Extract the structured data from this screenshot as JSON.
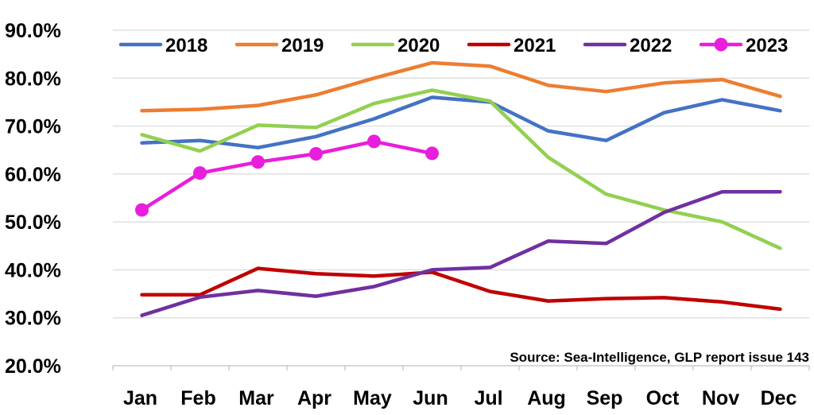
{
  "chart_data": {
    "type": "line",
    "categories": [
      "Jan",
      "Feb",
      "Mar",
      "Apr",
      "May",
      "Jun",
      "Jul",
      "Aug",
      "Sep",
      "Oct",
      "Nov",
      "Dec"
    ],
    "y_ticks": [
      "20.0%",
      "30.0%",
      "40.0%",
      "50.0%",
      "60.0%",
      "70.0%",
      "80.0%",
      "90.0%"
    ],
    "ylim": [
      20,
      90
    ],
    "grid": "horizontal",
    "legend_position": "top",
    "annotation": "Source: Sea-Intelligence, GLP report issue 143",
    "series": [
      {
        "name": "2018",
        "color": "#4472C4",
        "marker": "none",
        "values": [
          66.5,
          67.0,
          65.5,
          67.8,
          71.5,
          76.0,
          75.0,
          69.0,
          67.0,
          72.8,
          75.5,
          73.2
        ]
      },
      {
        "name": "2019",
        "color": "#ED7D31",
        "marker": "none",
        "values": [
          73.2,
          73.5,
          74.3,
          76.5,
          80.0,
          83.2,
          82.5,
          78.5,
          77.2,
          79.0,
          79.7,
          76.2
        ]
      },
      {
        "name": "2020",
        "color": "#92D050",
        "marker": "none",
        "values": [
          68.2,
          64.8,
          70.2,
          69.7,
          74.7,
          77.5,
          75.2,
          63.5,
          55.8,
          52.5,
          50.0,
          44.5
        ]
      },
      {
        "name": "2021",
        "color": "#C00000",
        "marker": "none",
        "values": [
          34.8,
          34.8,
          40.3,
          39.2,
          38.7,
          39.5,
          35.5,
          33.5,
          34.0,
          34.2,
          33.3,
          31.8
        ]
      },
      {
        "name": "2022",
        "color": "#7030A0",
        "marker": "none",
        "values": [
          30.5,
          34.3,
          35.7,
          34.5,
          36.5,
          40.0,
          40.5,
          46.0,
          45.5,
          52.0,
          56.3,
          56.3
        ]
      },
      {
        "name": "2023",
        "color": "#E81EDC",
        "marker": "circle",
        "values": [
          52.5,
          60.2,
          62.5,
          64.2,
          66.8,
          64.3,
          null,
          null,
          null,
          null,
          null,
          null
        ]
      }
    ]
  }
}
